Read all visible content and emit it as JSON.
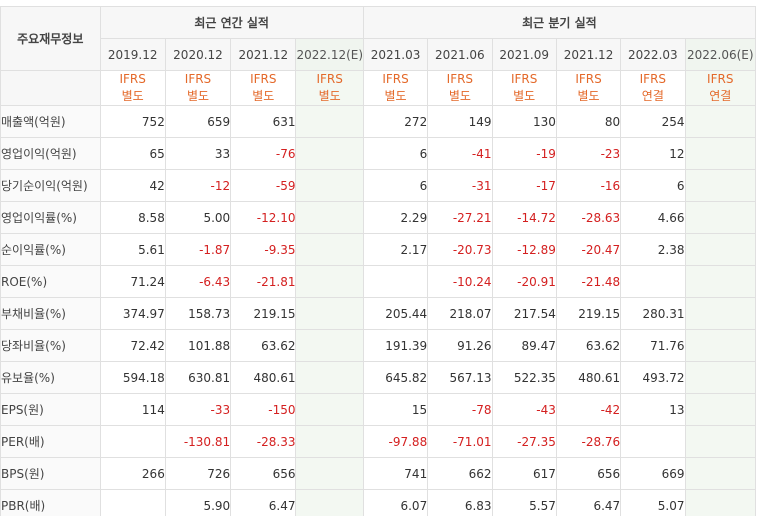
{
  "header": {
    "corner_label": "주요재무정보",
    "annual_group": "최근 연간 실적",
    "quarter_group": "최근 분기 실적",
    "periods": [
      "2019.12",
      "2020.12",
      "2021.12",
      "2022.12(E)",
      "2021.03",
      "2021.06",
      "2021.09",
      "2021.12",
      "2022.03",
      "2022.06(E)"
    ],
    "ifrs": [
      [
        "IFRS",
        "별도"
      ],
      [
        "IFRS",
        "별도"
      ],
      [
        "IFRS",
        "별도"
      ],
      [
        "IFRS",
        "별도"
      ],
      [
        "IFRS",
        "별도"
      ],
      [
        "IFRS",
        "별도"
      ],
      [
        "IFRS",
        "별도"
      ],
      [
        "IFRS",
        "별도"
      ],
      [
        "IFRS",
        "연결"
      ],
      [
        "IFRS",
        "연결"
      ]
    ]
  },
  "rows": [
    {
      "label": "매출액(억원)",
      "values": [
        "752",
        "659",
        "631",
        "",
        "272",
        "149",
        "130",
        "80",
        "254",
        ""
      ]
    },
    {
      "label": "영업이익(억원)",
      "values": [
        "65",
        "33",
        "-76",
        "",
        "6",
        "-41",
        "-19",
        "-23",
        "12",
        ""
      ]
    },
    {
      "label": "당기순이익(억원)",
      "values": [
        "42",
        "-12",
        "-59",
        "",
        "6",
        "-31",
        "-17",
        "-16",
        "6",
        ""
      ]
    },
    {
      "label": "영업이익률(%)",
      "values": [
        "8.58",
        "5.00",
        "-12.10",
        "",
        "2.29",
        "-27.21",
        "-14.72",
        "-28.63",
        "4.66",
        ""
      ]
    },
    {
      "label": "순이익률(%)",
      "values": [
        "5.61",
        "-1.87",
        "-9.35",
        "",
        "2.17",
        "-20.73",
        "-12.89",
        "-20.47",
        "2.38",
        ""
      ]
    },
    {
      "label": "ROE(%)",
      "values": [
        "71.24",
        "-6.43",
        "-21.81",
        "",
        "",
        "-10.24",
        "-20.91",
        "-21.48",
        "",
        ""
      ]
    },
    {
      "label": "부채비율(%)",
      "values": [
        "374.97",
        "158.73",
        "219.15",
        "",
        "205.44",
        "218.07",
        "217.54",
        "219.15",
        "280.31",
        ""
      ]
    },
    {
      "label": "당좌비율(%)",
      "values": [
        "72.42",
        "101.88",
        "63.62",
        "",
        "191.39",
        "91.26",
        "89.47",
        "63.62",
        "71.76",
        ""
      ]
    },
    {
      "label": "유보율(%)",
      "values": [
        "594.18",
        "630.81",
        "480.61",
        "",
        "645.82",
        "567.13",
        "522.35",
        "480.61",
        "493.72",
        ""
      ]
    },
    {
      "label": "EPS(원)",
      "values": [
        "114",
        "-33",
        "-150",
        "",
        "15",
        "-78",
        "-43",
        "-42",
        "13",
        ""
      ]
    },
    {
      "label": "PER(배)",
      "values": [
        "",
        "-130.81",
        "-28.33",
        "",
        "-97.88",
        "-71.01",
        "-27.35",
        "-28.76",
        "",
        ""
      ]
    },
    {
      "label": "BPS(원)",
      "values": [
        "266",
        "726",
        "656",
        "",
        "741",
        "662",
        "617",
        "656",
        "669",
        ""
      ]
    },
    {
      "label": "PBR(배)",
      "values": [
        "",
        "5.90",
        "6.47",
        "",
        "6.07",
        "6.83",
        "5.57",
        "6.47",
        "5.07",
        ""
      ]
    }
  ],
  "colors": {
    "negative": "#d42020",
    "ifrs_label": "#e4692a",
    "estimate_bg": "#f3f8f2"
  }
}
